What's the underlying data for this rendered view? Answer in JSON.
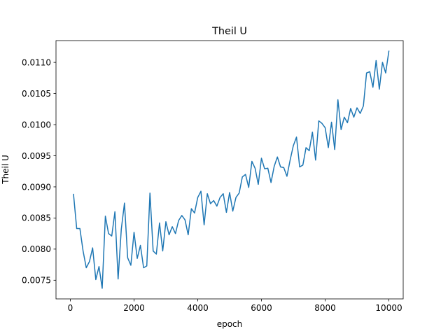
{
  "chart_data": {
    "type": "line",
    "title": "Theil U",
    "xlabel": "epoch",
    "ylabel": "Theil U",
    "xlim": [
      -450,
      10450
    ],
    "ylim": [
      0.0072,
      0.01135
    ],
    "xticks": [
      0,
      2000,
      4000,
      6000,
      8000,
      10000
    ],
    "xtick_labels": [
      "0",
      "2000",
      "4000",
      "6000",
      "8000",
      "10000"
    ],
    "yticks": [
      0.0075,
      0.008,
      0.0085,
      0.009,
      0.0095,
      0.01,
      0.0105,
      0.011
    ],
    "ytick_labels": [
      "0.0075",
      "0.0080",
      "0.0085",
      "0.0090",
      "0.0095",
      "0.0100",
      "0.0105",
      "0.0110"
    ],
    "grid": false,
    "legend": "none",
    "colors": {
      "line": "#1f77b4"
    },
    "series": [
      {
        "x": [
          100,
          200,
          300,
          400,
          500,
          600,
          700,
          800,
          900,
          1000,
          1100,
          1200,
          1300,
          1400,
          1500,
          1600,
          1700,
          1800,
          1900,
          2000,
          2100,
          2200,
          2300,
          2400,
          2500,
          2600,
          2700,
          2800,
          2900,
          3000,
          3100,
          3200,
          3300,
          3400,
          3500,
          3600,
          3700,
          3800,
          3900,
          4000,
          4100,
          4200,
          4300,
          4400,
          4500,
          4600,
          4700,
          4800,
          4900,
          5000,
          5100,
          5200,
          5300,
          5400,
          5500,
          5600,
          5700,
          5800,
          5900,
          6000,
          6100,
          6200,
          6300,
          6400,
          6500,
          6600,
          6700,
          6800,
          6900,
          7000,
          7100,
          7200,
          7300,
          7400,
          7500,
          7600,
          7700,
          7800,
          7900,
          8000,
          8100,
          8200,
          8300,
          8400,
          8500,
          8600,
          8700,
          8800,
          8900,
          9000,
          9100,
          9200,
          9300,
          9400,
          9500,
          9600,
          9700,
          9800,
          9900,
          10000
        ],
        "values": [
          0.00888,
          0.00833,
          0.00833,
          0.00797,
          0.0077,
          0.0078,
          0.00802,
          0.00751,
          0.00772,
          0.00737,
          0.00853,
          0.00825,
          0.00821,
          0.0086,
          0.00752,
          0.00832,
          0.00874,
          0.00786,
          0.00774,
          0.00827,
          0.00785,
          0.00806,
          0.0077,
          0.00773,
          0.0089,
          0.00797,
          0.00792,
          0.00842,
          0.00797,
          0.00844,
          0.00823,
          0.00836,
          0.00825,
          0.00846,
          0.00854,
          0.00847,
          0.00823,
          0.00865,
          0.00858,
          0.00883,
          0.00893,
          0.00839,
          0.00889,
          0.00873,
          0.00878,
          0.00869,
          0.00883,
          0.00889,
          0.00859,
          0.00891,
          0.00861,
          0.00883,
          0.0089,
          0.00916,
          0.0092,
          0.00899,
          0.00941,
          0.0093,
          0.00904,
          0.00946,
          0.00929,
          0.0093,
          0.00907,
          0.00933,
          0.00948,
          0.00932,
          0.00931,
          0.00917,
          0.00943,
          0.00966,
          0.0098,
          0.00932,
          0.00935,
          0.00963,
          0.00958,
          0.00988,
          0.00943,
          0.01006,
          0.01002,
          0.00995,
          0.00963,
          0.01004,
          0.0096,
          0.0104,
          0.00992,
          0.01012,
          0.01003,
          0.01026,
          0.01012,
          0.01027,
          0.01018,
          0.0103,
          0.01083,
          0.01085,
          0.0106,
          0.01103,
          0.01057,
          0.011,
          0.01083,
          0.01118
        ]
      }
    ]
  }
}
